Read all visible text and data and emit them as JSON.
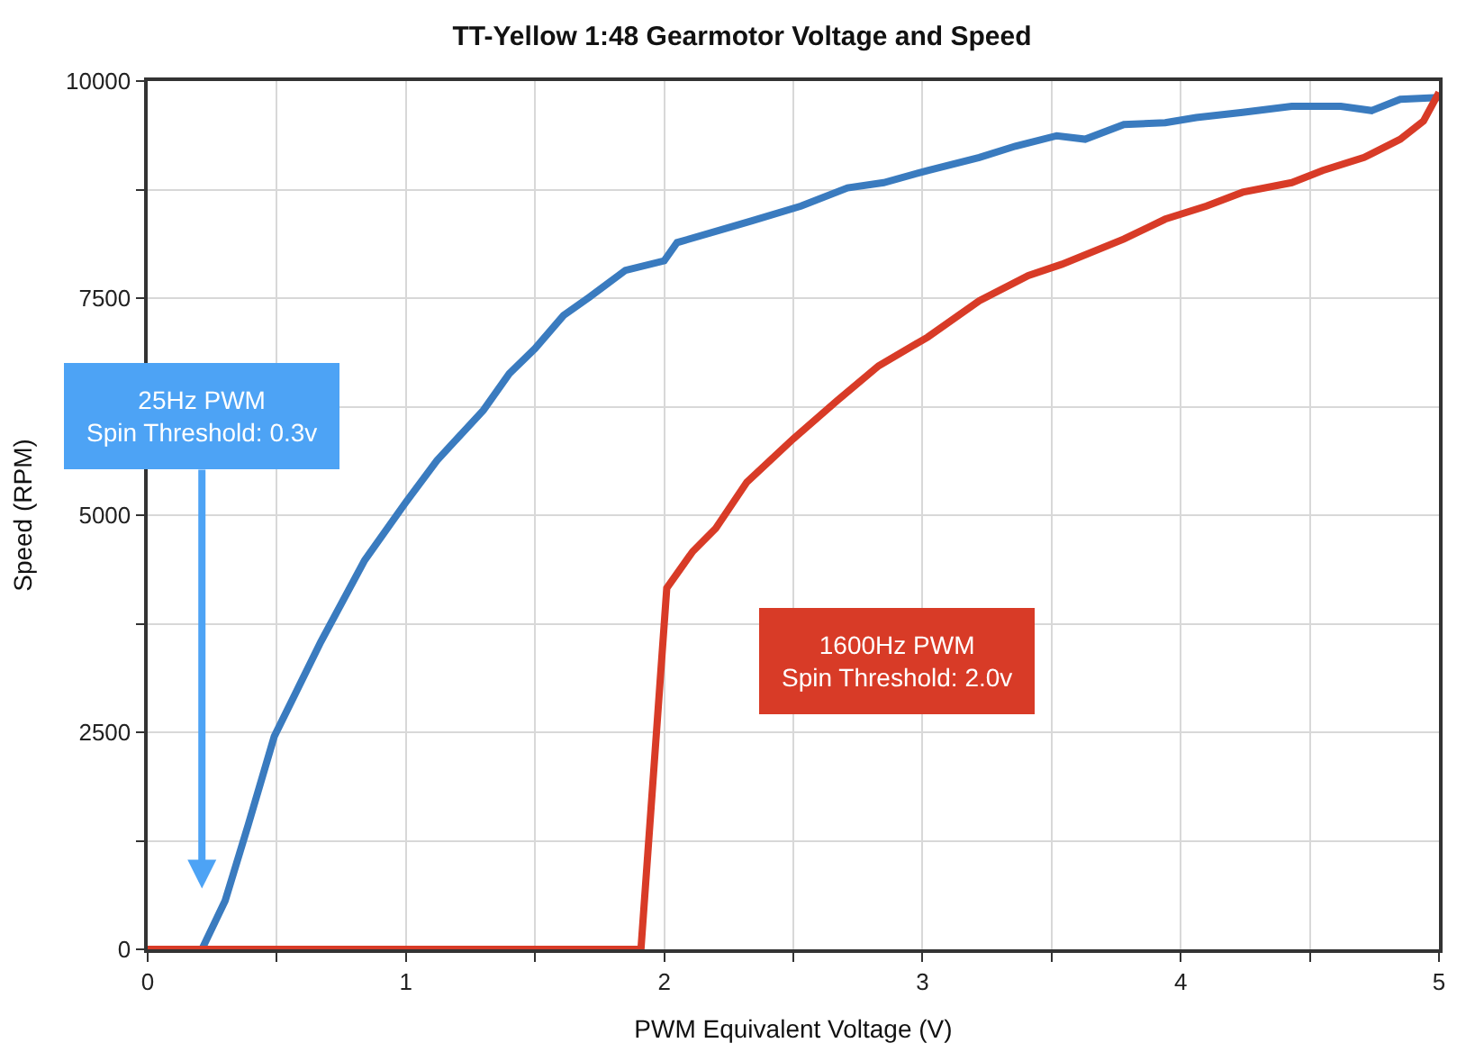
{
  "chart_data": {
    "type": "line",
    "title": "TT-Yellow 1:48 Gearmotor Voltage and Speed",
    "xlabel": "PWM Equivalent Voltage (V)",
    "ylabel": "Speed (RPM)",
    "xlim": [
      0,
      5
    ],
    "ylim": [
      0,
      10000
    ],
    "xticks": [
      0,
      {
        "value": 0.5,
        "label": null
      },
      1,
      {
        "value": 1.5,
        "label": null
      },
      2,
      {
        "value": 2.5,
        "label": null
      },
      3,
      {
        "value": 3.5,
        "label": null
      },
      4,
      {
        "value": 4.5,
        "label": null
      },
      5
    ],
    "yticks": [
      0,
      {
        "value": 1250,
        "label": null
      },
      2500,
      {
        "value": 3750,
        "label": null
      },
      5000,
      {
        "value": 6250,
        "label": null
      },
      7500,
      {
        "value": 8750,
        "label": null
      },
      10000
    ],
    "grid": true,
    "marker": "none",
    "line_style": "solid",
    "series": [
      {
        "color": "#3a7bbf",
        "x": [
          0,
          0.21,
          0.3,
          0.39,
          0.49,
          0.67,
          0.84,
          1.0,
          1.12,
          1.3,
          1.4,
          1.5,
          1.61,
          1.71,
          1.85,
          2.0,
          2.05,
          2.34,
          2.53,
          2.71,
          2.85,
          3.02,
          3.22,
          3.36,
          3.52,
          3.63,
          3.78,
          3.94,
          4.06,
          4.24,
          4.43,
          4.62,
          4.74,
          4.85,
          5.0
        ],
        "values": [
          0,
          0,
          560,
          1440,
          2450,
          3540,
          4480,
          5150,
          5630,
          6210,
          6630,
          6920,
          7300,
          7510,
          7820,
          7930,
          8140,
          8390,
          8560,
          8770,
          8830,
          8970,
          9120,
          9250,
          9370,
          9330,
          9500,
          9520,
          9580,
          9640,
          9710,
          9710,
          9660,
          9790,
          9810
        ]
      },
      {
        "color": "#d83b27",
        "x": [
          0,
          1.91,
          2.01,
          2.11,
          2.2,
          2.32,
          2.5,
          2.67,
          2.83,
          3.02,
          3.22,
          3.41,
          3.54,
          3.78,
          3.94,
          4.1,
          4.24,
          4.43,
          4.55,
          4.71,
          4.85,
          4.94,
          5.0
        ],
        "values": [
          0,
          0,
          4160,
          4580,
          4850,
          5380,
          5880,
          6320,
          6720,
          7050,
          7470,
          7760,
          7890,
          8180,
          8410,
          8560,
          8720,
          8830,
          8970,
          9120,
          9330,
          9540,
          9870
        ]
      }
    ],
    "annotations": [
      "25Hz PWM\nSpin Threshold: 0.3v",
      "1600Hz PWM\nSpin Threshold: 2.0v"
    ]
  }
}
